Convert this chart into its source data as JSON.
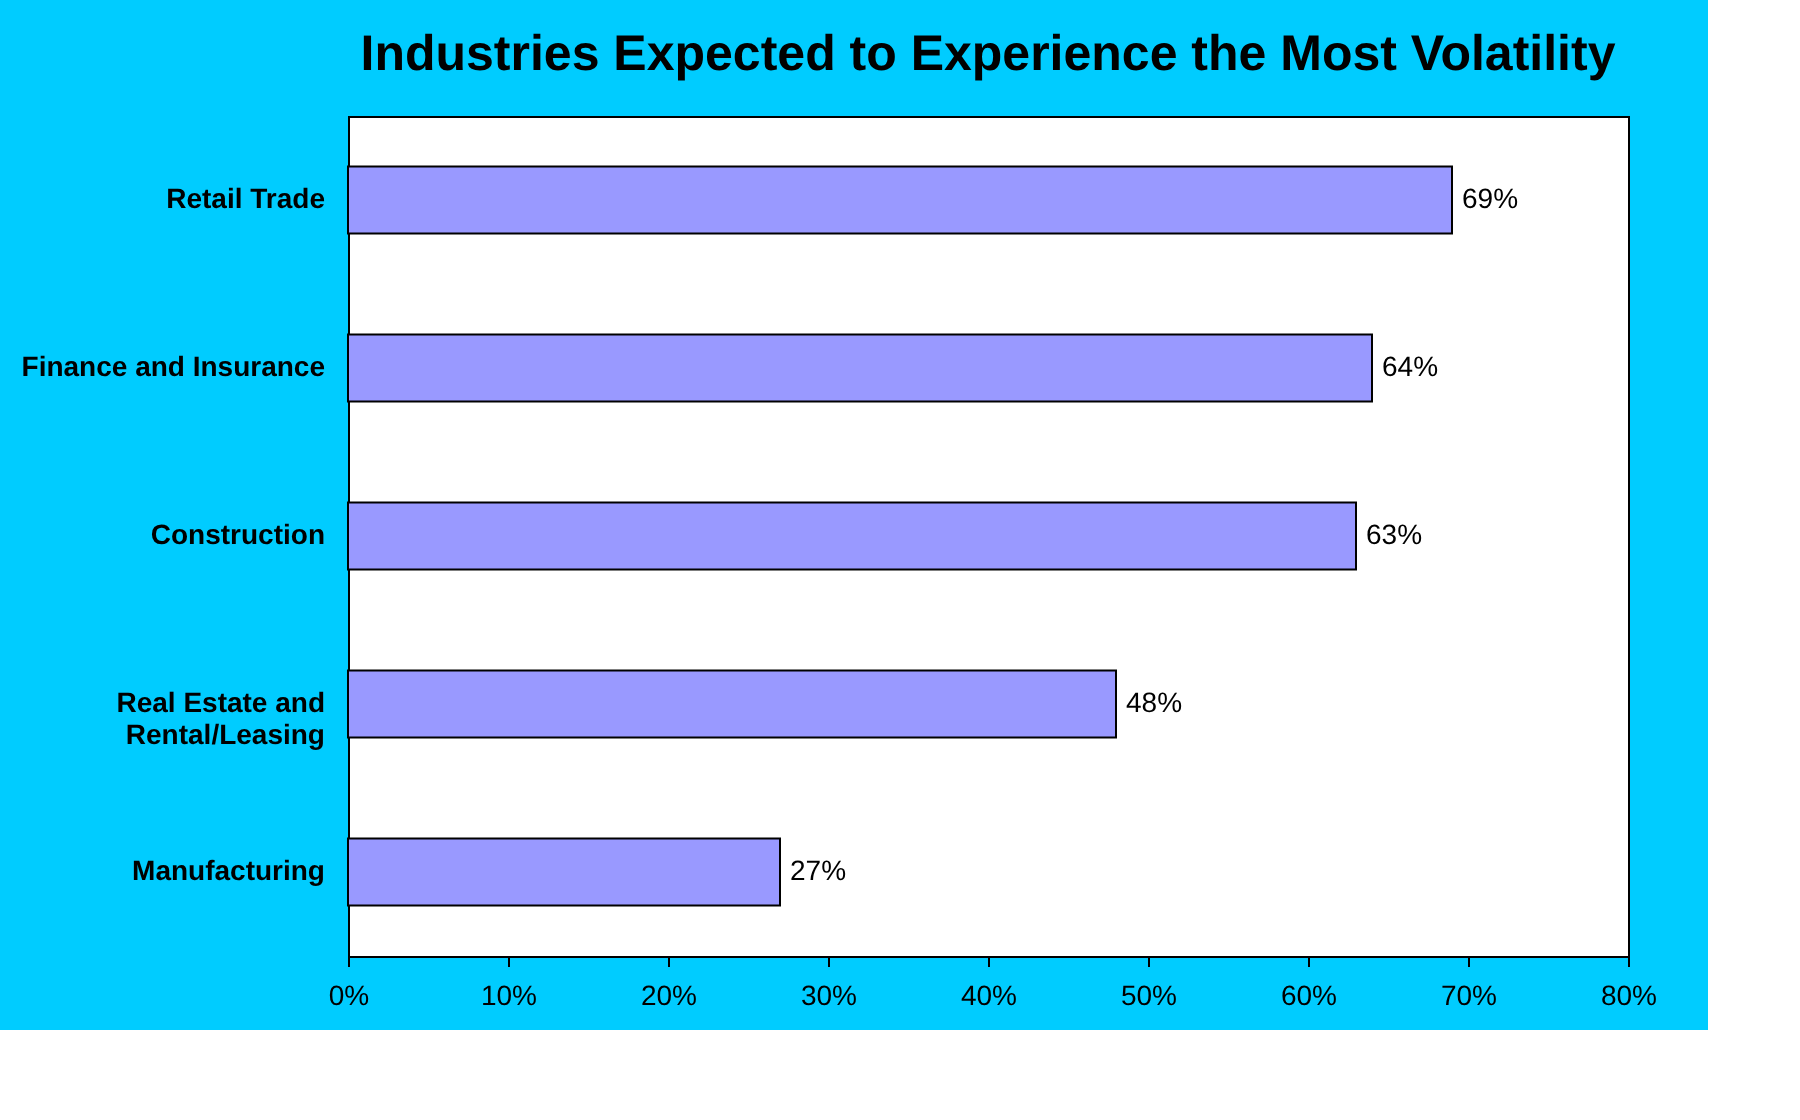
{
  "chart_data": {
    "type": "bar",
    "orientation": "horizontal",
    "title": "Industries Expected to Experience the Most Volatility",
    "categories": [
      "Retail Trade",
      "Finance and Insurance",
      "Construction",
      "Real Estate and\nRental/Leasing",
      "Manufacturing"
    ],
    "values": [
      69,
      64,
      63,
      48,
      27
    ],
    "color": "#9999ff",
    "value_labels": [
      "69%",
      "64%",
      "63%",
      "48%",
      "27%"
    ],
    "xlim": [
      0,
      80
    ],
    "xticks": [
      {
        "value": 0,
        "label": "0%"
      },
      {
        "value": 10,
        "label": "10%"
      },
      {
        "value": 20,
        "label": "20%"
      },
      {
        "value": 30,
        "label": "30%"
      },
      {
        "value": 40,
        "label": "40%"
      },
      {
        "value": 50,
        "label": "50%"
      },
      {
        "value": 60,
        "label": "60%"
      },
      {
        "value": 70,
        "label": "70%"
      },
      {
        "value": 80,
        "label": "80%"
      }
    ],
    "grid": false
  }
}
